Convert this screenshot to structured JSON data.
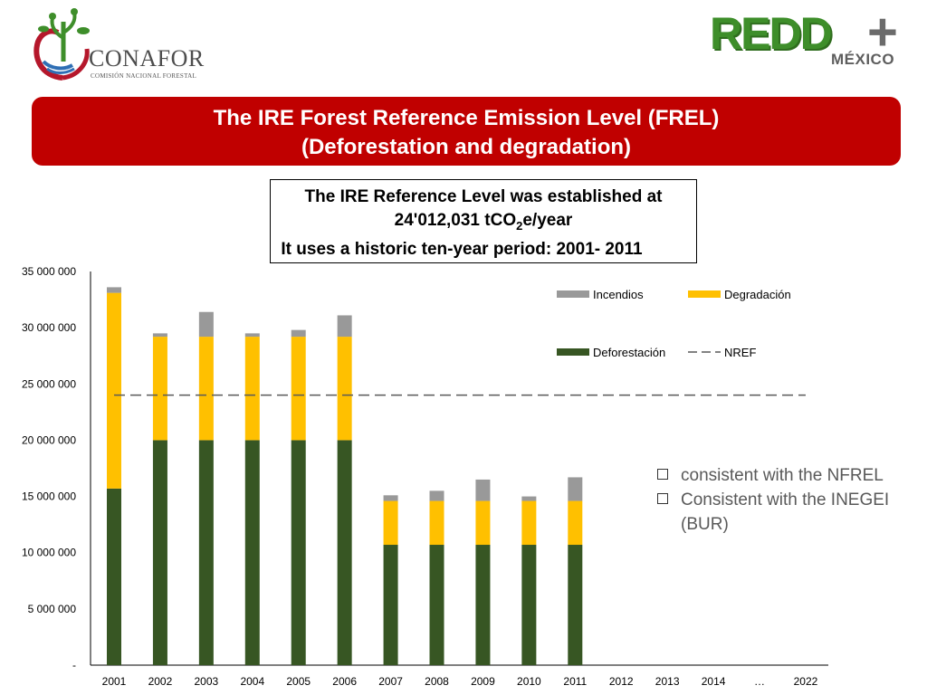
{
  "header": {
    "left_logo": {
      "name": "CONAFOR",
      "subtitle": "COMISIÓN NACIONAL FORESTAL"
    },
    "right_logo": {
      "word": "REDD",
      "plus": "+",
      "country": "MÉXICO"
    }
  },
  "banner": {
    "line1": "The IRE Forest Reference Emission Level (FREL)",
    "line2": "(Deforestation and degradation)"
  },
  "infobox": {
    "line1": "The IRE Reference Level was established at",
    "line2_pre": "24'012,031 tCO",
    "line2_sub": "2",
    "line2_post": "e/year",
    "line3": "It uses a historic ten-year period: 2001- 2011"
  },
  "bullets": [
    "consistent with the NFREL",
    "Consistent  with the INEGEI (BUR)"
  ],
  "chart_data": {
    "type": "bar",
    "stacked": true,
    "categories": [
      "2001",
      "2002",
      "2003",
      "2004",
      "2005",
      "2006",
      "2007",
      "2008",
      "2009",
      "2010",
      "2011",
      "2012",
      "2013",
      "2014",
      "…",
      "2022"
    ],
    "series": [
      {
        "name": "Deforestación",
        "color": "#375623",
        "values": [
          15700000,
          20000000,
          20000000,
          20000000,
          20000000,
          20000000,
          10700000,
          10700000,
          10700000,
          10700000,
          10700000,
          null,
          null,
          null,
          null,
          null
        ]
      },
      {
        "name": "Degradación",
        "color": "#ffc000",
        "values": [
          17400000,
          9200000,
          9200000,
          9200000,
          9200000,
          9200000,
          3900000,
          3900000,
          3900000,
          3900000,
          3900000,
          null,
          null,
          null,
          null,
          null
        ]
      },
      {
        "name": "Incendios",
        "color": "#999999",
        "values": [
          500000,
          300000,
          2200000,
          300000,
          600000,
          1900000,
          500000,
          900000,
          1900000,
          400000,
          2100000,
          null,
          null,
          null,
          null,
          null
        ]
      }
    ],
    "reference_line": {
      "name": "NREF",
      "value": 24012031,
      "color": "#595959",
      "style": "dashed"
    },
    "ylim": [
      0,
      35000000
    ],
    "yticks": [
      {
        "value": 0,
        "label": "-"
      },
      {
        "value": 5000000,
        "label": "5 000 000"
      },
      {
        "value": 10000000,
        "label": "10 000 000"
      },
      {
        "value": 15000000,
        "label": "15 000 000"
      },
      {
        "value": 20000000,
        "label": "20 000 000"
      },
      {
        "value": 25000000,
        "label": "25 000 000"
      },
      {
        "value": 30000000,
        "label": "30 000 000"
      },
      {
        "value": 35000000,
        "label": "35 000 000"
      }
    ],
    "grid": false,
    "legend": {
      "placement": "top-right",
      "entries": [
        {
          "name": "Incendios",
          "kind": "box",
          "color": "#999999"
        },
        {
          "name": "Degradación",
          "kind": "box",
          "color": "#ffc000"
        },
        {
          "name": "Deforestación",
          "kind": "box",
          "color": "#375623"
        },
        {
          "name": "NREF",
          "kind": "dash",
          "color": "#595959"
        }
      ]
    }
  }
}
